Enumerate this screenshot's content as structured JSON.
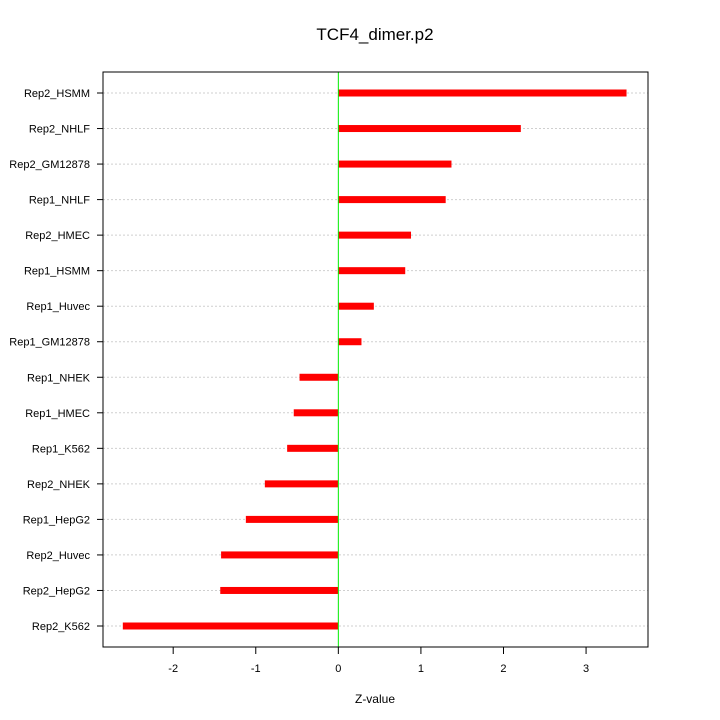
{
  "chart_data": {
    "type": "bar",
    "orientation": "horizontal",
    "title": "TCF4_dimer.p2",
    "xlabel": "Z-value",
    "ylabel": "",
    "xlim": [
      -2.85,
      3.75
    ],
    "x_ticks": [
      -2,
      -1,
      0,
      1,
      2,
      3
    ],
    "x_tick_labels": [
      "-2",
      "-1",
      "0",
      "1",
      "2",
      "3"
    ],
    "grid": true,
    "zero_line_color": "#00ee00",
    "bar_color": "#ff0000",
    "categories": [
      "Rep2_HSMM",
      "Rep2_NHLF",
      "Rep2_GM12878",
      "Rep1_NHLF",
      "Rep2_HMEC",
      "Rep1_HSMM",
      "Rep1_Huvec",
      "Rep1_GM12878",
      "Rep1_NHEK",
      "Rep1_HMEC",
      "Rep1_K562",
      "Rep2_NHEK",
      "Rep1_HepG2",
      "Rep2_Huvec",
      "Rep2_HepG2",
      "Rep2_K562"
    ],
    "values": [
      3.49,
      2.21,
      1.37,
      1.3,
      0.88,
      0.81,
      0.43,
      0.28,
      -0.47,
      -0.54,
      -0.62,
      -0.89,
      -1.12,
      -1.42,
      -1.43,
      -2.61
    ]
  }
}
